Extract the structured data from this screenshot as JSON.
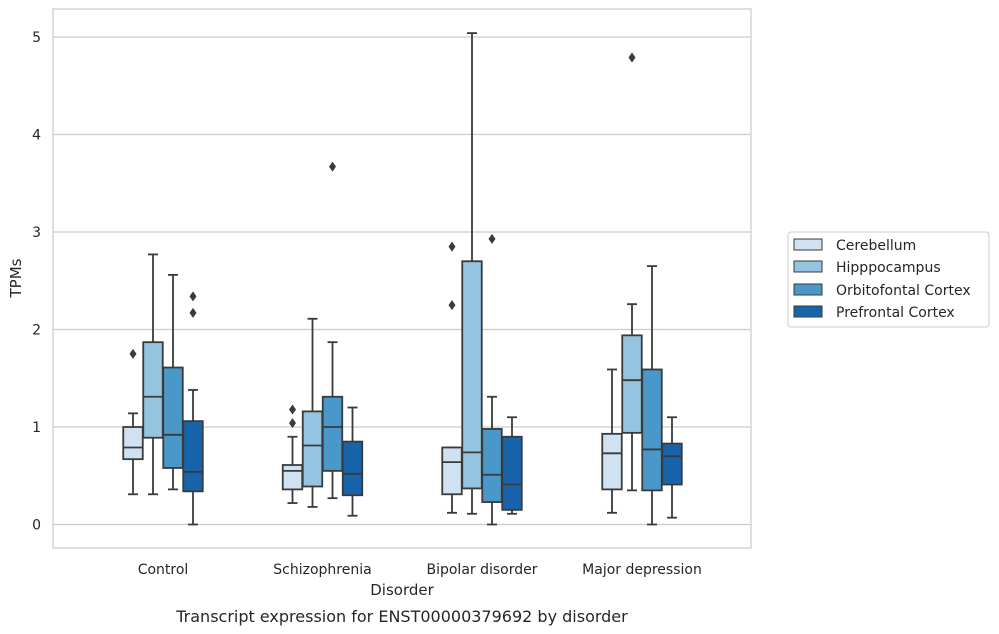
{
  "chart_data": {
    "type": "box",
    "caption": "Transcript expression for ENST00000379692 by disorder",
    "xlabel": "Disorder",
    "ylabel": "TPMs",
    "ylim": [
      -0.25,
      5.3
    ],
    "yticks": [
      0,
      1,
      2,
      3,
      4,
      5
    ],
    "grid": "horizontal",
    "legend_position": "right",
    "categories": [
      "Control",
      "Schizophrenia",
      "Bipolar disorder",
      "Major depression"
    ],
    "series": [
      {
        "name": "Cerebellum",
        "color": "#d0e1f2",
        "boxes": [
          {
            "whislo": 0.31,
            "q1": 0.67,
            "med": 0.79,
            "q3": 1.0,
            "whishi": 1.14,
            "fliers": [
              1.75
            ]
          },
          {
            "whislo": 0.22,
            "q1": 0.36,
            "med": 0.55,
            "q3": 0.61,
            "whishi": 0.9,
            "fliers": [
              1.04,
              1.18
            ]
          },
          {
            "whislo": 0.12,
            "q1": 0.31,
            "med": 0.64,
            "q3": 0.79,
            "whishi": 0.79,
            "fliers": [
              2.25,
              2.85
            ]
          },
          {
            "whislo": 0.12,
            "q1": 0.36,
            "med": 0.73,
            "q3": 0.93,
            "whishi": 1.59,
            "fliers": []
          }
        ]
      },
      {
        "name": "Hipppocampus",
        "color": "#94c4df",
        "boxes": [
          {
            "whislo": 0.31,
            "q1": 0.89,
            "med": 1.31,
            "q3": 1.87,
            "whishi": 2.77,
            "fliers": []
          },
          {
            "whislo": 0.18,
            "q1": 0.39,
            "med": 0.81,
            "q3": 1.16,
            "whishi": 2.11,
            "fliers": []
          },
          {
            "whislo": 0.11,
            "q1": 0.37,
            "med": 0.74,
            "q3": 2.7,
            "whishi": 5.04,
            "fliers": []
          },
          {
            "whislo": 0.35,
            "q1": 0.94,
            "med": 1.48,
            "q3": 1.94,
            "whishi": 2.26,
            "fliers": [
              4.79
            ]
          }
        ]
      },
      {
        "name": "Orbitofontal Cortex",
        "color": "#4a98c9",
        "boxes": [
          {
            "whislo": 0.36,
            "q1": 0.58,
            "med": 0.92,
            "q3": 1.61,
            "whishi": 2.56,
            "fliers": []
          },
          {
            "whislo": 0.27,
            "q1": 0.55,
            "med": 1.0,
            "q3": 1.31,
            "whishi": 1.87,
            "fliers": [
              3.67
            ]
          },
          {
            "whislo": 0.0,
            "q1": 0.23,
            "med": 0.51,
            "q3": 0.98,
            "whishi": 1.31,
            "fliers": [
              2.93
            ]
          },
          {
            "whislo": 0.0,
            "q1": 0.35,
            "med": 0.77,
            "q3": 1.59,
            "whishi": 2.65,
            "fliers": []
          }
        ]
      },
      {
        "name": "Prefrontal Cortex",
        "color": "#1764ab",
        "boxes": [
          {
            "whislo": 0.0,
            "q1": 0.34,
            "med": 0.54,
            "q3": 1.06,
            "whishi": 1.38,
            "fliers": [
              2.17,
              2.34
            ]
          },
          {
            "whislo": 0.09,
            "q1": 0.3,
            "med": 0.52,
            "q3": 0.85,
            "whishi": 1.2,
            "fliers": []
          },
          {
            "whislo": 0.11,
            "q1": 0.15,
            "med": 0.41,
            "q3": 0.9,
            "whishi": 1.1,
            "fliers": []
          },
          {
            "whislo": 0.07,
            "q1": 0.41,
            "med": 0.7,
            "q3": 0.83,
            "whishi": 1.1,
            "fliers": []
          }
        ]
      }
    ]
  }
}
